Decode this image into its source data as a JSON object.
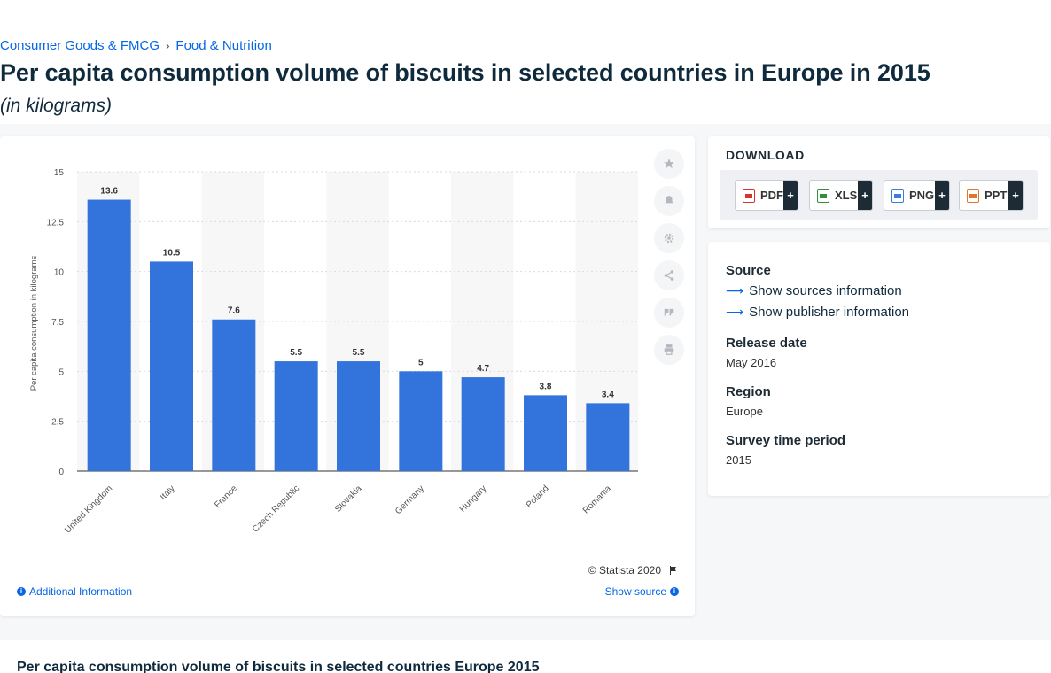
{
  "breadcrumb": {
    "items": [
      "Consumer Goods & FMCG",
      "Food & Nutrition"
    ],
    "separator": "›"
  },
  "header": {
    "title": "Per capita consumption volume of biscuits in selected countries in Europe in 2015",
    "subtitle": "(in kilograms)"
  },
  "chart_data": {
    "type": "bar",
    "categories": [
      "United Kingdom",
      "Italy",
      "France",
      "Czech Republic",
      "Slovakia",
      "Germany",
      "Hungary",
      "Poland",
      "Romania"
    ],
    "values": [
      13.6,
      10.5,
      7.6,
      5.5,
      5.5,
      5,
      4.7,
      3.8,
      3.4
    ],
    "data_labels": [
      "13.6",
      "10.5",
      "7.6",
      "5.5",
      "5.5",
      "5",
      "4.7",
      "3.8",
      "3.4"
    ],
    "ylabel": "Per capita consumption in kilograms",
    "ylim": [
      0,
      15
    ],
    "yticks": [
      "0",
      "2.5",
      "5",
      "7.5",
      "10",
      "12.5",
      "15"
    ],
    "bar_color": "#3273dc"
  },
  "chart_footer": {
    "copyright": "© Statista 2020",
    "additional_info": "Additional Information",
    "show_source": "Show source"
  },
  "toolbar": {
    "icons": [
      "star-icon",
      "bell-icon",
      "gear-icon",
      "share-icon",
      "quote-icon",
      "print-icon"
    ]
  },
  "download": {
    "title": "DOWNLOAD",
    "buttons": [
      {
        "label": "PDF",
        "plus": "+",
        "color": "#d9342b"
      },
      {
        "label": "XLS",
        "plus": "+",
        "color": "#2f8f3a"
      },
      {
        "label": "PNG",
        "plus": "+",
        "color": "#3b7dd8"
      },
      {
        "label": "PPT",
        "plus": "+",
        "color": "#e0762a"
      }
    ]
  },
  "info": {
    "source_label": "Source",
    "show_sources": "Show sources information",
    "show_publisher": "Show publisher information",
    "release_label": "Release date",
    "release_value": "May 2016",
    "region_label": "Region",
    "region_value": "Europe",
    "survey_label": "Survey time period",
    "survey_value": "2015"
  },
  "bottom": {
    "title": "Per capita consumption volume of biscuits in selected countries Europe 2015"
  }
}
